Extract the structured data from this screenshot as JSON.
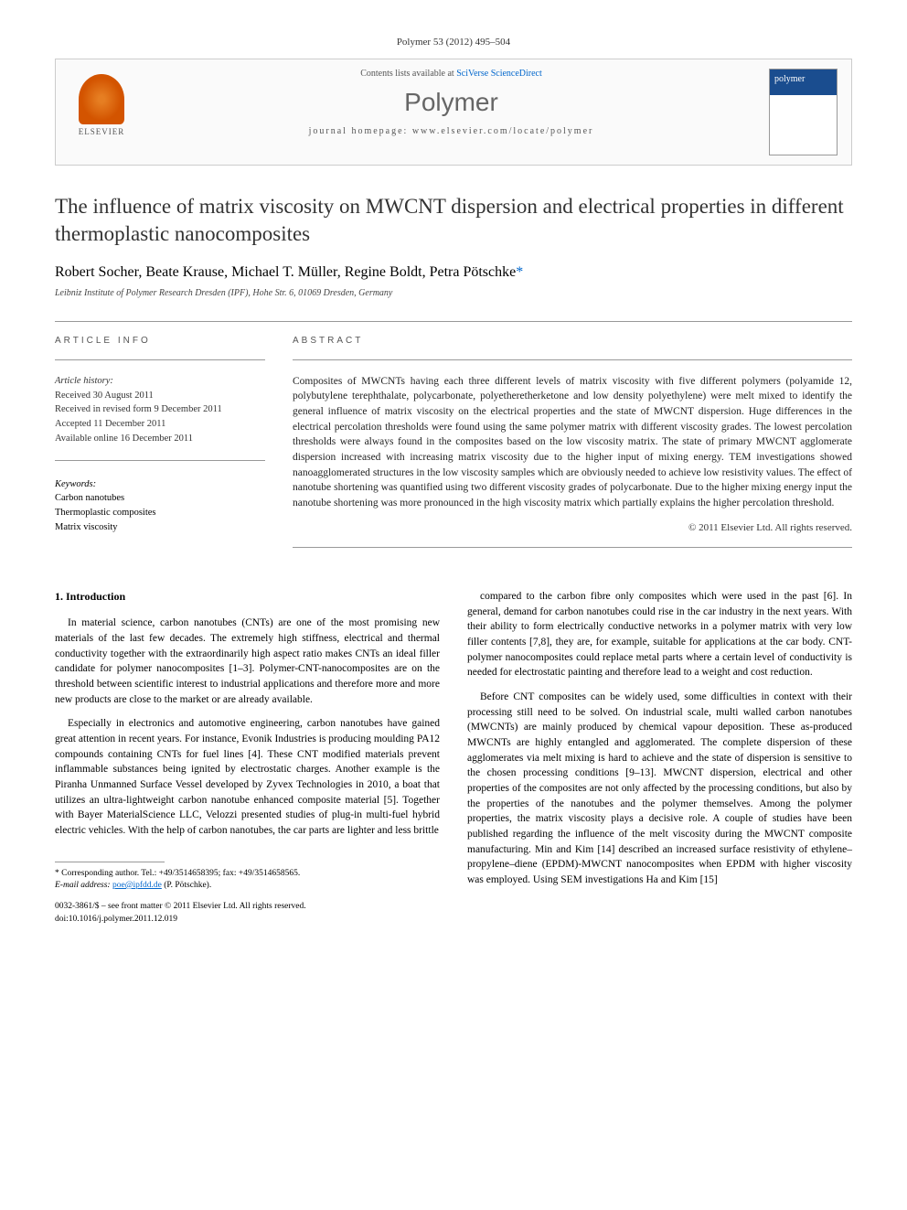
{
  "citation": "Polymer 53 (2012) 495–504",
  "header": {
    "contents_prefix": "Contents lists available at ",
    "contents_link": "SciVerse ScienceDirect",
    "journal_name": "Polymer",
    "homepage_label": "journal homepage: ",
    "homepage_url": "www.elsevier.com/locate/polymer",
    "publisher_name": "ELSEVIER"
  },
  "title": "The influence of matrix viscosity on MWCNT dispersion and electrical properties in different thermoplastic nanocomposites",
  "authors_plain": "Robert Socher, Beate Krause, Michael T. Müller, Regine Boldt, Petra Pötschke",
  "corr_mark": "*",
  "affiliation": "Leibniz Institute of Polymer Research Dresden (IPF), Hohe Str. 6, 01069 Dresden, Germany",
  "article_info_heading": "ARTICLE INFO",
  "abstract_heading": "ABSTRACT",
  "history": {
    "label": "Article history:",
    "received": "Received 30 August 2011",
    "revised": "Received in revised form 9 December 2011",
    "accepted": "Accepted 11 December 2011",
    "online": "Available online 16 December 2011"
  },
  "keywords": {
    "label": "Keywords:",
    "items": [
      "Carbon nanotubes",
      "Thermoplastic composites",
      "Matrix viscosity"
    ]
  },
  "abstract": "Composites of MWCNTs having each three different levels of matrix viscosity with five different polymers (polyamide 12, polybutylene terephthalate, polycarbonate, polyetheretherketone and low density polyethylene) were melt mixed to identify the general influence of matrix viscosity on the electrical properties and the state of MWCNT dispersion. Huge differences in the electrical percolation thresholds were found using the same polymer matrix with different viscosity grades. The lowest percolation thresholds were always found in the composites based on the low viscosity matrix. The state of primary MWCNT agglomerate dispersion increased with increasing matrix viscosity due to the higher input of mixing energy. TEM investigations showed nanoagglomerated structures in the low viscosity samples which are obviously needed to achieve low resistivity values. The effect of nanotube shortening was quantified using two different viscosity grades of polycarbonate. Due to the higher mixing energy input the nanotube shortening was more pronounced in the high viscosity matrix which partially explains the higher percolation threshold.",
  "copyright": "© 2011 Elsevier Ltd. All rights reserved.",
  "intro_heading": "1. Introduction",
  "body": {
    "col1_p1": "In material science, carbon nanotubes (CNTs) are one of the most promising new materials of the last few decades. The extremely high stiffness, electrical and thermal conductivity together with the extraordinarily high aspect ratio makes CNTs an ideal filler candidate for polymer nanocomposites [1–3]. Polymer-CNT-nanocomposites are on the threshold between scientific interest to industrial applications and therefore more and more new products are close to the market or are already available.",
    "col1_p2": "Especially in electronics and automotive engineering, carbon nanotubes have gained great attention in recent years. For instance, Evonik Industries is producing moulding PA12 compounds containing CNTs for fuel lines [4]. These CNT modified materials prevent inflammable substances being ignited by electrostatic charges. Another example is the Piranha Unmanned Surface Vessel developed by Zyvex Technologies in 2010, a boat that utilizes an ultra-lightweight carbon nanotube enhanced composite material [5]. Together with Bayer MaterialScience LLC, Velozzi presented studies of plug-in multi-fuel hybrid electric vehicles. With the help of carbon nanotubes, the car parts are lighter and less brittle",
    "col2_p1": "compared to the carbon fibre only composites which were used in the past [6]. In general, demand for carbon nanotubes could rise in the car industry in the next years. With their ability to form electrically conductive networks in a polymer matrix with very low filler contents [7,8], they are, for example, suitable for applications at the car body. CNT-polymer nanocomposites could replace metal parts where a certain level of conductivity is needed for electrostatic painting and therefore lead to a weight and cost reduction.",
    "col2_p2": "Before CNT composites can be widely used, some difficulties in context with their processing still need to be solved. On industrial scale, multi walled carbon nanotubes (MWCNTs) are mainly produced by chemical vapour deposition. These as-produced MWCNTs are highly entangled and agglomerated. The complete dispersion of these agglomerates via melt mixing is hard to achieve and the state of dispersion is sensitive to the chosen processing conditions [9–13]. MWCNT dispersion, electrical and other properties of the composites are not only affected by the processing conditions, but also by the properties of the nanotubes and the polymer themselves. Among the polymer properties, the matrix viscosity plays a decisive role. A couple of studies have been published regarding the influence of the melt viscosity during the MWCNT composite manufacturing. Min and Kim [14] described an increased surface resistivity of ethylene–propylene–diene (EPDM)-MWCNT nanocomposites when EPDM with higher viscosity was employed. Using SEM investigations Ha and Kim [15]"
  },
  "corresponding": {
    "label": "* Corresponding author. Tel.: +49/3514658395; fax: +49/3514658565.",
    "email_label": "E-mail address:",
    "email": "poe@ipfdd.de",
    "email_name": "(P. Pötschke)."
  },
  "doi": {
    "line1": "0032-3861/$ – see front matter © 2011 Elsevier Ltd. All rights reserved.",
    "line2": "doi:10.1016/j.polymer.2011.12.019"
  },
  "refs": {
    "r1_3": "[1–3]",
    "r4": "[4]",
    "r5": "[5]",
    "r6": "[6]",
    "r7_8": "[7,8]",
    "r9_13": "[9–13]",
    "r14": "[14]",
    "r15": "[15]"
  },
  "colors": {
    "link": "#0066cc",
    "text": "#222222",
    "heading_gray": "#555555",
    "border": "#999999"
  }
}
